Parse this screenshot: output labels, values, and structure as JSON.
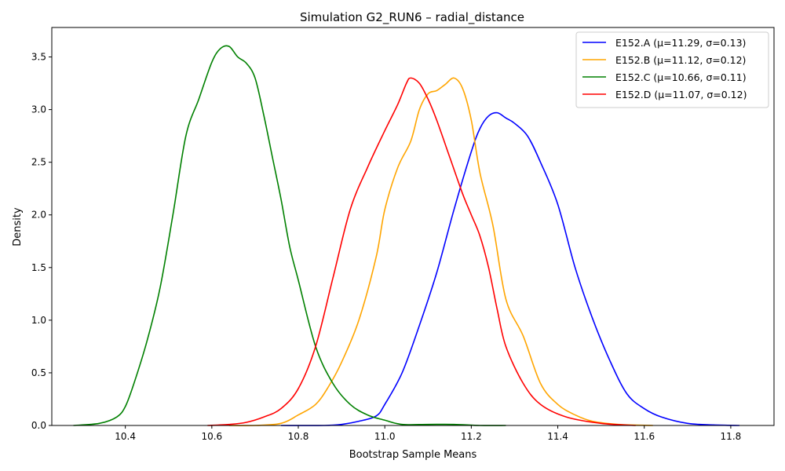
{
  "chart_data": {
    "type": "line",
    "title": "Simulation G2_RUN6 – radial_distance",
    "xlabel": "Bootstrap Sample Means",
    "ylabel": "Density",
    "xlim": [
      10.23,
      11.9
    ],
    "ylim": [
      0.0,
      3.78
    ],
    "xticks": [
      10.4,
      10.6,
      10.8,
      11.0,
      11.2,
      11.4,
      11.6,
      11.8
    ],
    "xtick_labels": [
      "10.4",
      "10.6",
      "10.8",
      "11.0",
      "11.2",
      "11.4",
      "11.6",
      "11.8"
    ],
    "yticks": [
      0.0,
      0.5,
      1.0,
      1.5,
      2.0,
      2.5,
      3.0,
      3.5
    ],
    "ytick_labels": [
      "0.0",
      "0.5",
      "1.0",
      "1.5",
      "2.0",
      "2.5",
      "3.0",
      "3.5"
    ],
    "grid": false,
    "legend_position": "top-right",
    "series": [
      {
        "name": "E152.A (μ=11.29, σ=0.13)",
        "color": "#0000ff",
        "x": [
          10.76,
          10.86,
          10.9,
          10.94,
          10.98,
          11.0,
          11.04,
          11.08,
          11.12,
          11.16,
          11.2,
          11.22,
          11.24,
          11.26,
          11.28,
          11.3,
          11.33,
          11.36,
          11.4,
          11.44,
          11.48,
          11.52,
          11.56,
          11.6,
          11.64,
          11.7,
          11.76,
          11.82
        ],
        "y": [
          0.0,
          0.0,
          0.01,
          0.04,
          0.09,
          0.2,
          0.5,
          0.95,
          1.45,
          2.05,
          2.6,
          2.82,
          2.94,
          2.97,
          2.92,
          2.87,
          2.75,
          2.5,
          2.1,
          1.5,
          1.02,
          0.62,
          0.3,
          0.16,
          0.08,
          0.02,
          0.005,
          0.0
        ]
      },
      {
        "name": "E152.B (μ=11.12, σ=0.12)",
        "color": "#ffa500",
        "x": [
          10.64,
          10.7,
          10.76,
          10.8,
          10.84,
          10.87,
          10.9,
          10.94,
          10.98,
          11.0,
          11.03,
          11.06,
          11.08,
          11.1,
          11.12,
          11.14,
          11.16,
          11.18,
          11.2,
          11.22,
          11.25,
          11.28,
          11.32,
          11.36,
          11.4,
          11.44,
          11.48,
          11.54,
          11.62
        ],
        "y": [
          0.0,
          0.0,
          0.02,
          0.1,
          0.2,
          0.37,
          0.6,
          1.0,
          1.6,
          2.05,
          2.45,
          2.7,
          3.0,
          3.15,
          3.18,
          3.24,
          3.3,
          3.2,
          2.9,
          2.4,
          1.9,
          1.2,
          0.85,
          0.4,
          0.2,
          0.1,
          0.04,
          0.01,
          0.0
        ]
      },
      {
        "name": "E152.C (μ=10.66, σ=0.11)",
        "color": "#008000",
        "x": [
          10.28,
          10.34,
          10.38,
          10.4,
          10.42,
          10.45,
          10.48,
          10.51,
          10.54,
          10.57,
          10.6,
          10.62,
          10.64,
          10.66,
          10.68,
          10.7,
          10.72,
          10.74,
          10.76,
          10.78,
          10.8,
          10.84,
          10.88,
          10.92,
          10.96,
          11.0,
          11.04,
          11.1,
          11.16,
          11.22,
          11.28
        ],
        "y": [
          0.0,
          0.02,
          0.08,
          0.18,
          0.4,
          0.8,
          1.3,
          2.0,
          2.75,
          3.1,
          3.45,
          3.58,
          3.6,
          3.5,
          3.44,
          3.3,
          2.95,
          2.55,
          2.15,
          1.7,
          1.38,
          0.75,
          0.4,
          0.2,
          0.1,
          0.05,
          0.01,
          0.01,
          0.01,
          0.0,
          0.0
        ]
      },
      {
        "name": "E152.D (μ=11.07, σ=0.12)",
        "color": "#ff0000",
        "x": [
          10.59,
          10.64,
          10.68,
          10.72,
          10.76,
          10.8,
          10.84,
          10.88,
          10.92,
          10.96,
          11.0,
          11.03,
          11.05,
          11.06,
          11.08,
          11.1,
          11.12,
          11.15,
          11.18,
          11.2,
          11.22,
          11.24,
          11.26,
          11.28,
          11.32,
          11.36,
          11.42,
          11.5,
          11.58
        ],
        "y": [
          0.0,
          0.01,
          0.03,
          0.08,
          0.16,
          0.35,
          0.75,
          1.4,
          2.05,
          2.45,
          2.8,
          3.05,
          3.25,
          3.3,
          3.25,
          3.1,
          2.9,
          2.55,
          2.2,
          2.0,
          1.8,
          1.5,
          1.1,
          0.75,
          0.4,
          0.2,
          0.08,
          0.02,
          0.0
        ]
      }
    ]
  }
}
